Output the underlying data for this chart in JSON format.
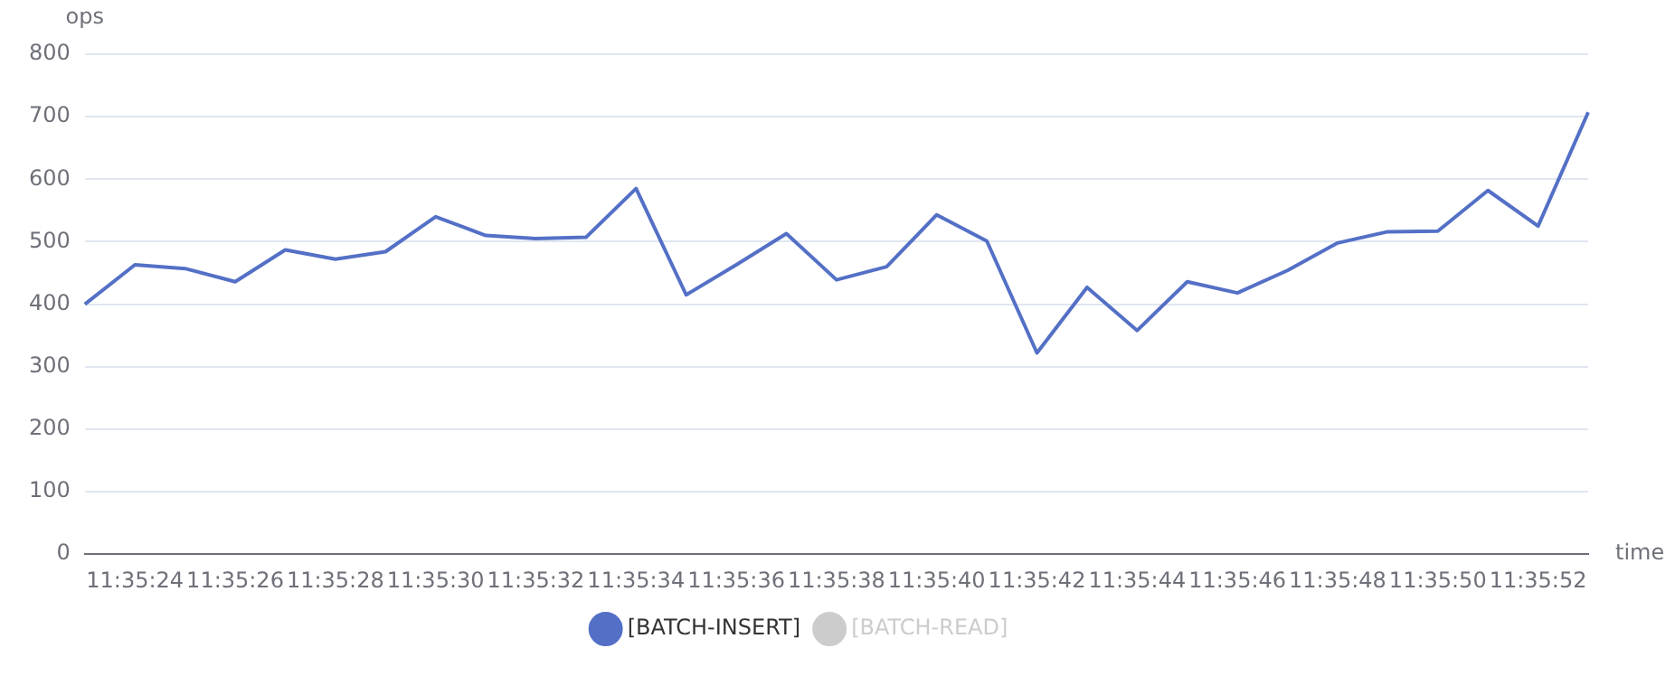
{
  "chart_data": {
    "type": "line",
    "xlabel": "time",
    "ylabel": "ops",
    "categories": [
      null,
      "11:35:24",
      null,
      "11:35:26",
      null,
      "11:35:28",
      null,
      "11:35:30",
      null,
      "11:35:32",
      null,
      "11:35:34",
      null,
      "11:35:36",
      null,
      "11:35:38",
      null,
      "11:35:40",
      null,
      "11:35:42",
      null,
      "11:35:44",
      null,
      "11:35:46",
      null,
      "11:35:48",
      null,
      "11:35:50",
      null,
      "11:35:52",
      null
    ],
    "series": [
      {
        "name": "[BATCH-INSERT]",
        "color": "#5470c6",
        "values": [
          400,
          463,
          457,
          436,
          487,
          472,
          484,
          540,
          510,
          505,
          507,
          585,
          415,
          463,
          513,
          439,
          460,
          543,
          501,
          322,
          427,
          358,
          436,
          418,
          454,
          498,
          516,
          517,
          582,
          525,
          707
        ]
      },
      {
        "name": "[BATCH-READ]",
        "color": "#cccccc",
        "values": [
          null,
          null,
          null,
          null,
          null,
          null,
          null,
          null,
          null,
          null,
          null,
          null,
          null,
          null,
          null,
          null,
          null,
          null,
          null,
          null,
          null,
          null,
          null,
          null,
          null,
          null,
          null,
          null,
          null,
          null,
          null
        ]
      }
    ],
    "ylim": [
      0,
      800
    ],
    "yticks": [
      0,
      100,
      200,
      300,
      400,
      500,
      600,
      700,
      800
    ],
    "grid": "y",
    "legend": "bottom",
    "marker": "none",
    "line_style": "solid"
  }
}
